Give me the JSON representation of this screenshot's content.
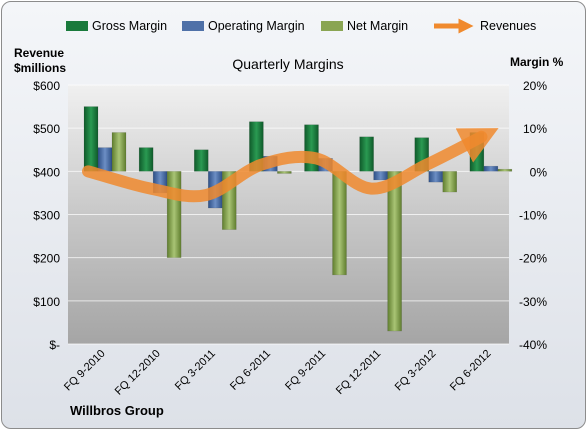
{
  "chart_data": {
    "type": "bar",
    "title": "Quarterly Margins",
    "left_axis_title_line1": "Revenue",
    "left_axis_title_line2": "$millions",
    "right_axis_title": "Margin %",
    "company": "Willbros Group",
    "categories": [
      "FQ 9-2010",
      "FQ 12-2010",
      "FQ 3-2011",
      "FQ 6-2011",
      "FQ 9-2011",
      "FQ 12-2011",
      "FQ 3-2012",
      "FQ 6-2012"
    ],
    "left_axis": {
      "min": 0,
      "max": 600,
      "ticks": [
        0,
        100,
        200,
        300,
        400,
        500,
        600
      ],
      "tick_labels": [
        "$-",
        "$100",
        "$200",
        "$300",
        "$400",
        "$500",
        "$600"
      ]
    },
    "right_axis": {
      "min": -40,
      "max": 20,
      "ticks": [
        -40,
        -30,
        -20,
        -10,
        0,
        10,
        20
      ],
      "tick_labels": [
        "-40%",
        "-30%",
        "-20%",
        "-10%",
        "0%",
        "10%",
        "20%"
      ]
    },
    "series": [
      {
        "name": "Gross Margin",
        "axis": "right",
        "color": "#1a7a3c",
        "values": [
          15,
          5.5,
          5,
          11.5,
          10.8,
          8,
          7.8,
          9
        ]
      },
      {
        "name": "Operating Margin",
        "axis": "right",
        "color": "#4f71a8",
        "values": [
          5.5,
          -5,
          -8.5,
          3.5,
          3,
          -2,
          -2.5,
          1.2
        ]
      },
      {
        "name": "Net Margin",
        "axis": "right",
        "color": "#8aa553",
        "values": [
          9,
          -20,
          -13.5,
          -0.5,
          -24,
          -37,
          -4.8,
          0.5
        ]
      },
      {
        "name": "Revenues",
        "axis": "left",
        "type": "line",
        "color": "#f08a2e",
        "values": [
          400,
          360,
          345,
          415,
          430,
          360,
          415,
          480
        ]
      }
    ],
    "legend_position": "top",
    "grid": true
  }
}
